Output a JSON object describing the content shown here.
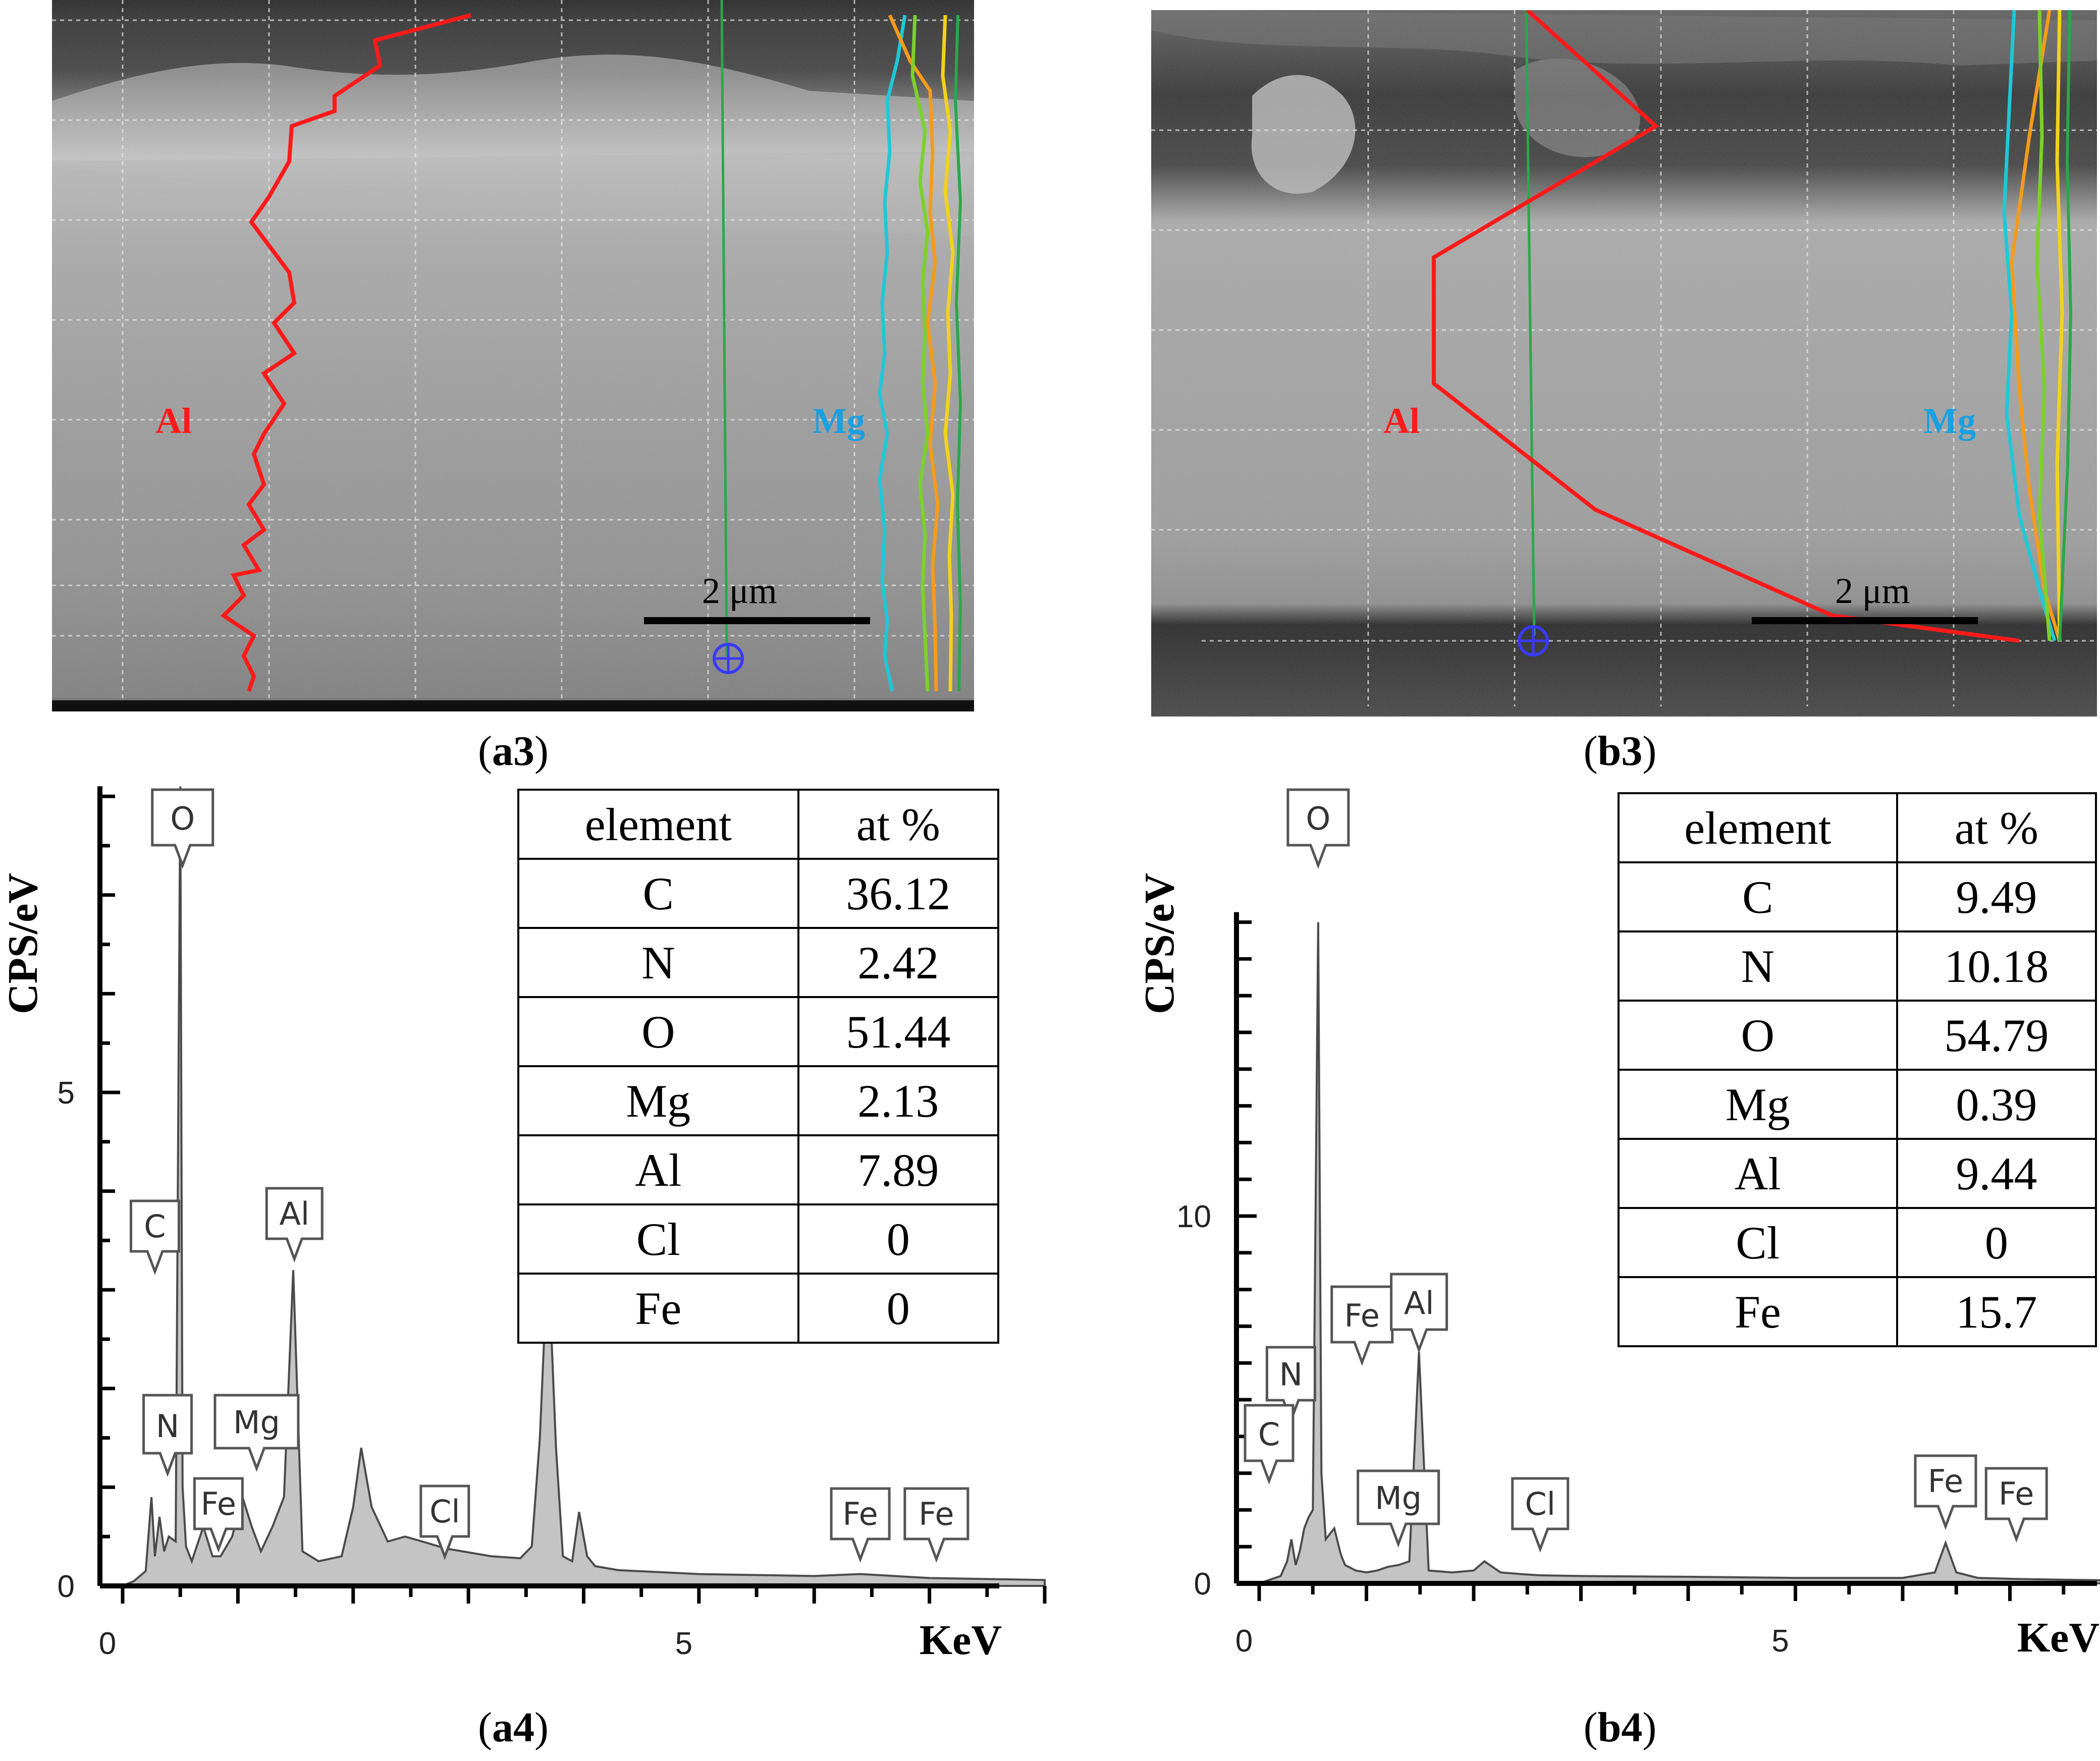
{
  "panels": {
    "a3": {
      "caption_letter": "a3",
      "labels": {
        "al": "Al",
        "mg": "Mg"
      },
      "scale_bar": "2 μm"
    },
    "b3": {
      "caption_letter": "b3",
      "labels": {
        "al": "Al",
        "mg": "Mg"
      },
      "scale_bar": "2 μm"
    },
    "a4": {
      "caption_letter": "a4"
    },
    "b4": {
      "caption_letter": "b4"
    }
  },
  "colors": {
    "al_line": "#ff1a1a",
    "mg_line": "#1ec8d8",
    "mg_label": "#1aa0e0",
    "spectrum_fill": "#c4c4c4",
    "spectrum_line": "#4a4a4a",
    "scan_line": "#2aa84a",
    "marker": "#3a3aff"
  },
  "chart_data": [
    {
      "id": "a4",
      "type": "area",
      "ylabel": "CPS/eV",
      "xlabel": "KeV",
      "xlim": [
        0,
        8
      ],
      "ylim": [
        0,
        8
      ],
      "xticks": [
        0,
        5
      ],
      "yticks": [
        0,
        5
      ],
      "x": [
        0.0,
        0.1,
        0.2,
        0.25,
        0.28,
        0.32,
        0.36,
        0.4,
        0.46,
        0.5,
        0.52,
        0.55,
        0.6,
        0.7,
        0.78,
        0.85,
        0.95,
        1.04,
        1.12,
        1.2,
        1.3,
        1.4,
        1.48,
        1.56,
        1.7,
        1.9,
        2.0,
        2.07,
        2.16,
        2.3,
        2.45,
        2.6,
        2.8,
        3.0,
        3.2,
        3.45,
        3.55,
        3.62,
        3.69,
        3.76,
        3.82,
        3.9,
        3.96,
        4.03,
        4.1,
        4.3,
        5.0,
        6.0,
        6.4,
        7.0,
        8.0
      ],
      "y": [
        0.0,
        0.05,
        0.15,
        0.9,
        0.3,
        0.7,
        0.35,
        0.5,
        0.45,
        8.1,
        1.0,
        0.4,
        0.25,
        0.6,
        0.3,
        0.3,
        0.5,
        0.9,
        0.6,
        0.35,
        0.6,
        0.9,
        3.2,
        0.35,
        0.25,
        0.3,
        0.8,
        1.4,
        0.8,
        0.45,
        0.5,
        0.45,
        0.38,
        0.34,
        0.3,
        0.28,
        0.4,
        1.5,
        3.4,
        1.4,
        0.3,
        0.25,
        0.75,
        0.3,
        0.2,
        0.16,
        0.12,
        0.1,
        0.12,
        0.08,
        0.06
      ],
      "peak_labels": [
        {
          "label": "O",
          "x": 0.52
        },
        {
          "label": "C",
          "x": 0.28
        },
        {
          "label": "Al",
          "x": 1.49
        },
        {
          "label": "N",
          "x": 0.39
        },
        {
          "label": "Mg",
          "x": 1.25
        },
        {
          "label": "Fe",
          "x": 0.7
        },
        {
          "label": "Cl",
          "x": 2.62
        },
        {
          "label": "Fe",
          "x": 6.4
        },
        {
          "label": "Fe",
          "x": 7.06
        }
      ],
      "table": {
        "headers": [
          "element",
          "at %"
        ],
        "rows": [
          [
            "C",
            "36.12"
          ],
          [
            "N",
            "2.42"
          ],
          [
            "O",
            "51.44"
          ],
          [
            "Mg",
            "2.13"
          ],
          [
            "Al",
            "7.89"
          ],
          [
            "Cl",
            "0"
          ],
          [
            "Fe",
            "0"
          ]
        ]
      }
    },
    {
      "id": "b4",
      "type": "area",
      "ylabel": "CPS/eV",
      "xlabel": "KeV",
      "xlim": [
        0,
        8
      ],
      "ylim": [
        0,
        18
      ],
      "xticks": [
        0,
        5
      ],
      "yticks": [
        0,
        10
      ],
      "x": [
        0.0,
        0.1,
        0.2,
        0.26,
        0.3,
        0.34,
        0.38,
        0.42,
        0.46,
        0.5,
        0.55,
        0.58,
        0.62,
        0.7,
        0.76,
        0.8,
        0.9,
        1.0,
        1.1,
        1.2,
        1.3,
        1.4,
        1.49,
        1.58,
        1.8,
        2.0,
        2.1,
        2.25,
        2.45,
        2.62,
        3.0,
        4.0,
        5.0,
        6.0,
        6.3,
        6.4,
        6.5,
        6.7,
        7.06,
        7.5,
        8.0
      ],
      "y": [
        0.0,
        0.1,
        0.2,
        0.6,
        1.2,
        0.5,
        0.9,
        1.5,
        1.8,
        2.0,
        18.0,
        3.0,
        1.2,
        1.5,
        0.8,
        0.5,
        0.35,
        0.3,
        0.35,
        0.45,
        0.5,
        0.6,
        6.3,
        0.35,
        0.3,
        0.35,
        0.6,
        0.3,
        0.25,
        0.22,
        0.2,
        0.18,
        0.15,
        0.15,
        0.3,
        1.1,
        0.3,
        0.15,
        0.12,
        0.1,
        0.08
      ],
      "peak_labels": [
        {
          "label": "O",
          "x": 0.55
        },
        {
          "label": "Fe",
          "x": 0.7
        },
        {
          "label": "Al",
          "x": 1.49
        },
        {
          "label": "N",
          "x": 0.39
        },
        {
          "label": "C",
          "x": 0.28
        },
        {
          "label": "Mg",
          "x": 1.25
        },
        {
          "label": "Cl",
          "x": 2.62
        },
        {
          "label": "Fe",
          "x": 6.4
        },
        {
          "label": "Fe",
          "x": 7.06
        }
      ],
      "table": {
        "headers": [
          "element",
          "at %"
        ],
        "rows": [
          [
            "C",
            "9.49"
          ],
          [
            "N",
            "10.18"
          ],
          [
            "O",
            "54.79"
          ],
          [
            "Mg",
            "0.39"
          ],
          [
            "Al",
            "9.44"
          ],
          [
            "Cl",
            "0"
          ],
          [
            "Fe",
            "15.7"
          ]
        ]
      }
    }
  ]
}
